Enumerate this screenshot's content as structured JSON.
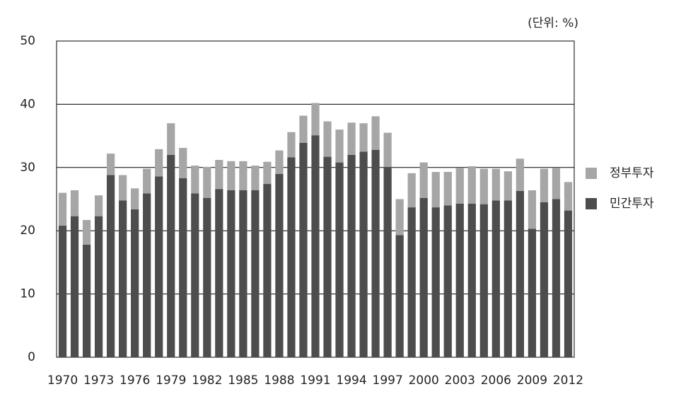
{
  "chart_data": {
    "type": "stacked-bar",
    "unit_label": "(단위: %)",
    "categories": [
      "1970",
      null,
      null,
      "1973",
      null,
      null,
      "1976",
      null,
      null,
      "1979",
      null,
      null,
      "1982",
      null,
      null,
      "1985",
      null,
      null,
      "1988",
      null,
      null,
      "1991",
      null,
      null,
      "1994",
      null,
      null,
      "1997",
      null,
      null,
      "2000",
      null,
      null,
      "2003",
      null,
      null,
      "2006",
      null,
      null,
      "2009",
      null,
      null,
      "2012"
    ],
    "series": [
      {
        "name": "민간투자",
        "color": "#4d4d4d",
        "values": [
          20.8,
          22.3,
          17.8,
          22.3,
          28.8,
          24.8,
          23.4,
          25.9,
          28.6,
          32.0,
          28.3,
          25.9,
          25.2,
          26.6,
          26.4,
          26.4,
          26.4,
          27.4,
          29.0,
          31.6,
          33.9,
          35.1,
          31.7,
          30.8,
          32.0,
          32.5,
          32.8,
          30.1,
          19.3,
          23.7,
          25.2,
          23.7,
          24.0,
          24.3,
          24.3,
          24.2,
          24.8,
          24.8,
          26.3,
          20.3,
          24.5,
          25.0,
          23.2
        ]
      },
      {
        "name": "정부투자",
        "color": "#a6a6a6",
        "values": [
          5.2,
          4.1,
          3.9,
          3.3,
          3.4,
          4.0,
          3.3,
          3.9,
          4.3,
          5.0,
          4.8,
          4.4,
          4.9,
          4.6,
          4.6,
          4.6,
          3.9,
          3.5,
          3.7,
          4.0,
          4.3,
          5.1,
          5.6,
          5.2,
          5.1,
          4.5,
          5.3,
          5.4,
          5.7,
          5.4,
          5.6,
          5.6,
          5.3,
          5.6,
          5.9,
          5.6,
          5.0,
          4.6,
          5.1,
          6.1,
          5.3,
          4.9,
          4.5
        ]
      }
    ],
    "ylim": [
      0,
      50
    ],
    "yticks": [
      0,
      10,
      20,
      30,
      40,
      50
    ],
    "grid": true
  }
}
